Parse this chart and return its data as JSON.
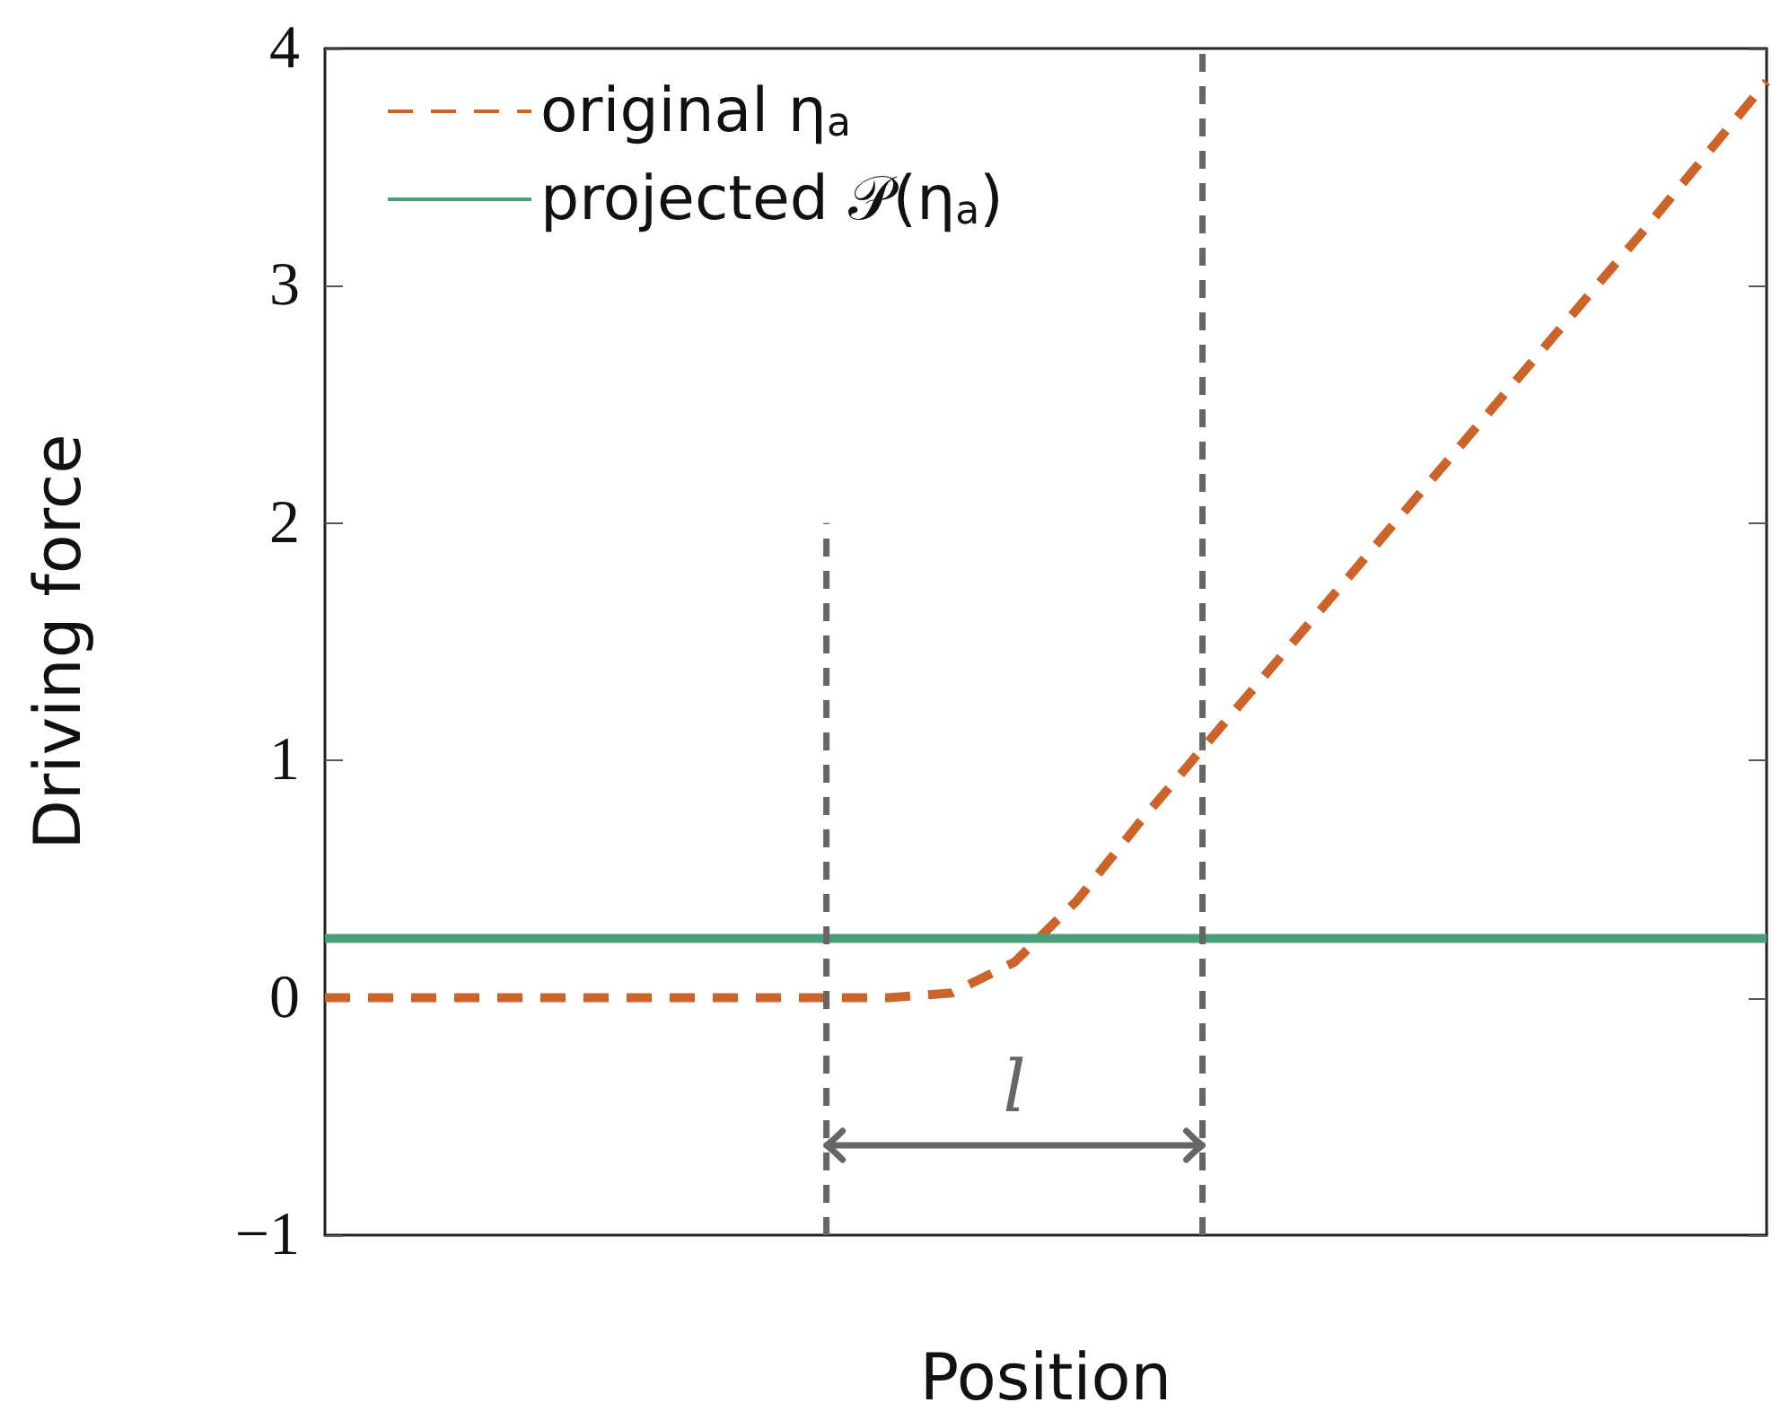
{
  "chart_data": {
    "type": "line",
    "xlabel": "Position",
    "ylabel": "Driving force",
    "categories": [
      null,
      null,
      null,
      null,
      null,
      null,
      null,
      null,
      null,
      null,
      null,
      null,
      null,
      null,
      null,
      null,
      null,
      null,
      null,
      null,
      null,
      null,
      null,
      null
    ],
    "ylim": [
      -1,
      4
    ],
    "yticks": [
      -1,
      0,
      1,
      2,
      3,
      4
    ],
    "grid": false,
    "legend": "top left",
    "marker": "none",
    "series": [
      {
        "name": "original η$_{a}$",
        "color": "#cc6328",
        "line_style": "dashed",
        "values": [
          0,
          0,
          0,
          0,
          0,
          0,
          0,
          0,
          0,
          0,
          0.02,
          0.15,
          0.41,
          0.74,
          1.05,
          1.36,
          1.67,
          1.98,
          2.29,
          2.6,
          2.91,
          3.22,
          3.54,
          3.86
        ]
      },
      {
        "name": "projected 𝒫(η$_{a}$)",
        "color": "#4a9e78",
        "line_style": "solid",
        "values": [
          0.25,
          0.25,
          0.25,
          0.25,
          0.25,
          0.25,
          0.25,
          0.25,
          0.25,
          0.25,
          0.25,
          0.25,
          0.25,
          0.25,
          0.25,
          0.25,
          0.25,
          0.25,
          0.25,
          0.25,
          0.25,
          0.25,
          0.25,
          0.25
        ]
      }
    ],
    "annotations": [
      "l"
    ]
  }
}
